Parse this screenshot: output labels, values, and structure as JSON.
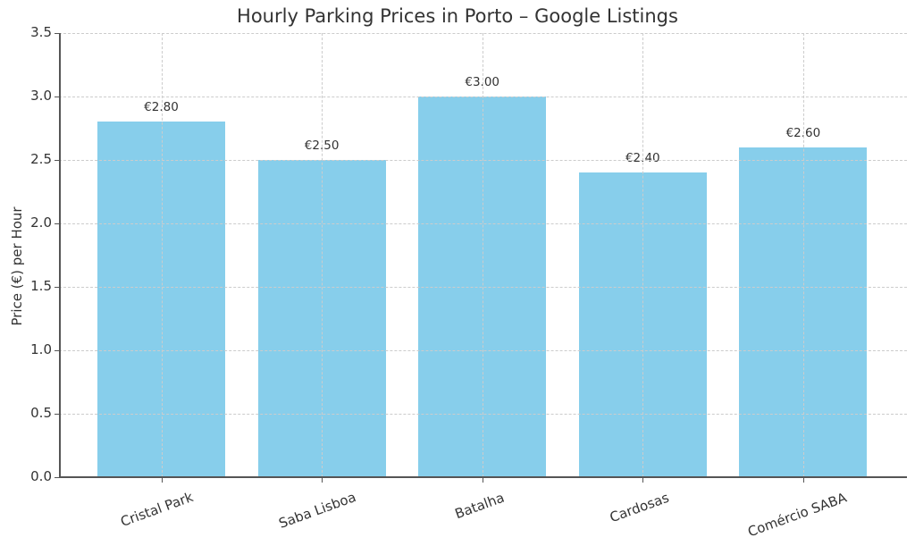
{
  "chart_data": {
    "type": "bar",
    "title": "Hourly Parking Prices in Porto – Google Listings",
    "xlabel": "",
    "ylabel": "Price (€) per Hour",
    "categories": [
      "Cristal Park",
      "Saba Lisboa",
      "Batalha",
      "Cardosas",
      "Comércio SABA"
    ],
    "values": [
      2.8,
      2.5,
      3.0,
      2.4,
      2.6
    ],
    "data_labels": [
      "€2.80",
      "€2.50",
      "€3.00",
      "€2.40",
      "€2.60"
    ],
    "ylim": [
      0,
      3.5
    ],
    "yticks": [
      "0.0",
      "0.5",
      "1.0",
      "1.5",
      "2.0",
      "2.5",
      "3.0",
      "3.5"
    ],
    "grid": true,
    "legend": null,
    "bar_color": "#87ceeb",
    "xtick_rotation": -20
  }
}
